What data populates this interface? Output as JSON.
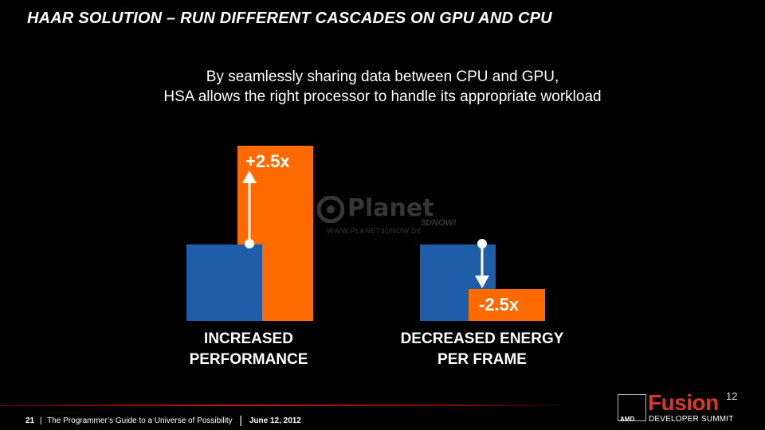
{
  "slide": {
    "title": "HAAR SOLUTION – RUN DIFFERENT CASCADES ON GPU AND CPU",
    "subtitle_line1": "By seamlessly sharing data between CPU and GPU,",
    "subtitle_line2": "HSA allows the right processor to handle its appropriate workload"
  },
  "groups": [
    {
      "label_line1": "INCREASED",
      "label_line2": "PERFORMANCE",
      "change_label": "+2.5x"
    },
    {
      "label_line1": "DECREASED ENERGY",
      "label_line2": "PER FRAME",
      "change_label": "-2.5x"
    }
  ],
  "watermark": {
    "brand": "Planet",
    "sub": "3DNOW!",
    "url": "WWW.PLANET3DNOW.DE"
  },
  "footer": {
    "page_number": "21",
    "tagline": "The Programmer’s Guide to a Universe of Possibility",
    "date": "June 12, 2012"
  },
  "logo": {
    "amd": "AMD",
    "fusion": "Fusion",
    "superscript": "12",
    "developer_summit": "DEVELOPER SUMMIT"
  },
  "colors": {
    "blue": "#1f5da8",
    "orange": "#ff6a00",
    "footer_red": "#c81a10"
  }
}
